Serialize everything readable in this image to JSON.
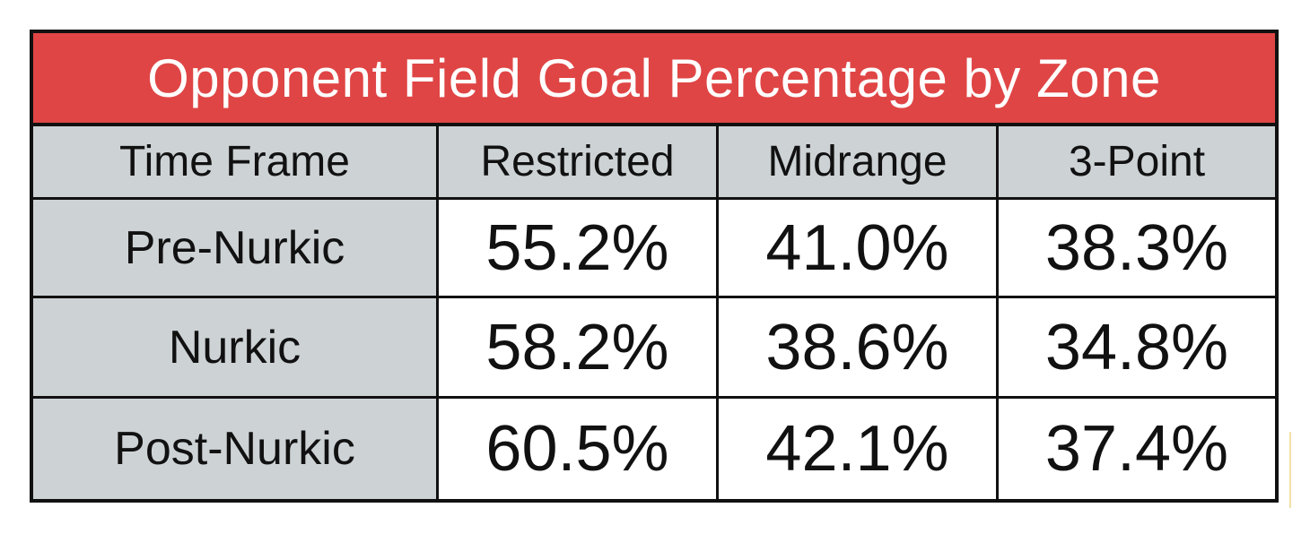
{
  "chart_data": {
    "type": "table",
    "title": "Opponent Field Goal Percentage by Zone",
    "columns": [
      "Time Frame",
      "Restricted",
      "Midrange",
      "3-Point"
    ],
    "rows": [
      {
        "label": "Pre-Nurkic",
        "values": [
          "55.2%",
          "41.0%",
          "38.3%"
        ]
      },
      {
        "label": "Nurkic",
        "values": [
          "58.2%",
          "38.6%",
          "34.8%"
        ]
      },
      {
        "label": "Post-Nurkic",
        "values": [
          "60.5%",
          "42.1%",
          "37.4%"
        ]
      }
    ]
  },
  "colors": {
    "title_background": "#e04545",
    "header_background": "#cdd2d5",
    "border": "#111111"
  }
}
